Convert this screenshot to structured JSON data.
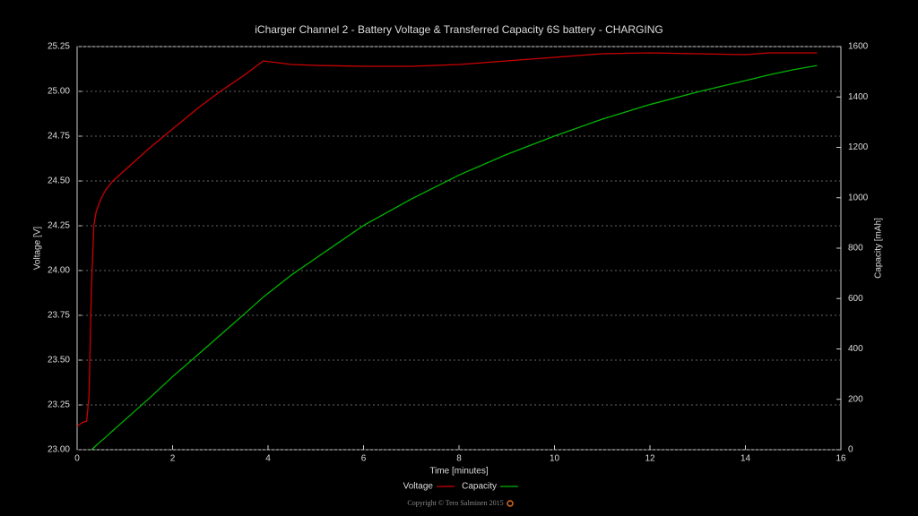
{
  "chart_data": {
    "type": "line",
    "title": "iCharger Channel 2 - Battery Voltage & Transferred Capacity 6S battery - CHARGING",
    "x_label": "Time [minutes]",
    "y_label": "Voltage [V]",
    "y2_label": "Capacity [mAh]",
    "footer": "Copyright © Tero Salminen 2015",
    "x": [
      0,
      0.1,
      0.2,
      0.25,
      0.3,
      0.35,
      0.4,
      0.5,
      0.6,
      0.75,
      1,
      1.5,
      2,
      2.5,
      3,
      3.5,
      3.9,
      4.5,
      5,
      6,
      7,
      8,
      9,
      10,
      11,
      12,
      13,
      14,
      14.5,
      15,
      15.5
    ],
    "series": [
      {
        "name": "Voltage",
        "color": "#cc0000",
        "axis": "y",
        "values": [
          23.13,
          23.15,
          23.16,
          23.3,
          23.9,
          24.25,
          24.33,
          24.4,
          24.45,
          24.5,
          24.56,
          24.68,
          24.79,
          24.9,
          25.0,
          25.09,
          25.17,
          25.15,
          25.145,
          25.14,
          25.14,
          25.15,
          25.17,
          25.19,
          25.21,
          25.215,
          25.21,
          25.205,
          25.215,
          25.215,
          25.215
        ]
      },
      {
        "name": "Capacity",
        "color": "#00b400",
        "axis": "y2",
        "values": [
          null,
          null,
          null,
          null,
          0,
          8,
          17,
          34,
          50,
          76,
          118,
          202,
          290,
          372,
          455,
          538,
          606,
          695,
          760,
          890,
          995,
          1090,
          1172,
          1245,
          1312,
          1370,
          1420,
          1465,
          1488,
          1508,
          1525
        ]
      }
    ],
    "xlim": [
      0,
      16
    ],
    "xticks": [
      0,
      2,
      4,
      6,
      8,
      10,
      12,
      14,
      16
    ],
    "ylim": [
      23,
      25.25
    ],
    "yticks": [
      {
        "value": 23,
        "label": "23.00"
      },
      {
        "value": 23.25,
        "label": "23.25"
      },
      {
        "value": 23.5,
        "label": "23.50"
      },
      {
        "value": 23.75,
        "label": "23.75"
      },
      {
        "value": 24,
        "label": "24.00"
      },
      {
        "value": 24.25,
        "label": "24.25"
      },
      {
        "value": 24.5,
        "label": "24.50"
      },
      {
        "value": 24.75,
        "label": "24.75"
      },
      {
        "value": 25,
        "label": "25.00"
      },
      {
        "value": 25.25,
        "label": "25.25"
      }
    ],
    "y2lim": [
      0,
      1600
    ],
    "y2ticks": [
      0,
      200,
      400,
      600,
      800,
      1000,
      1200,
      1400,
      1600
    ],
    "grid": true
  }
}
